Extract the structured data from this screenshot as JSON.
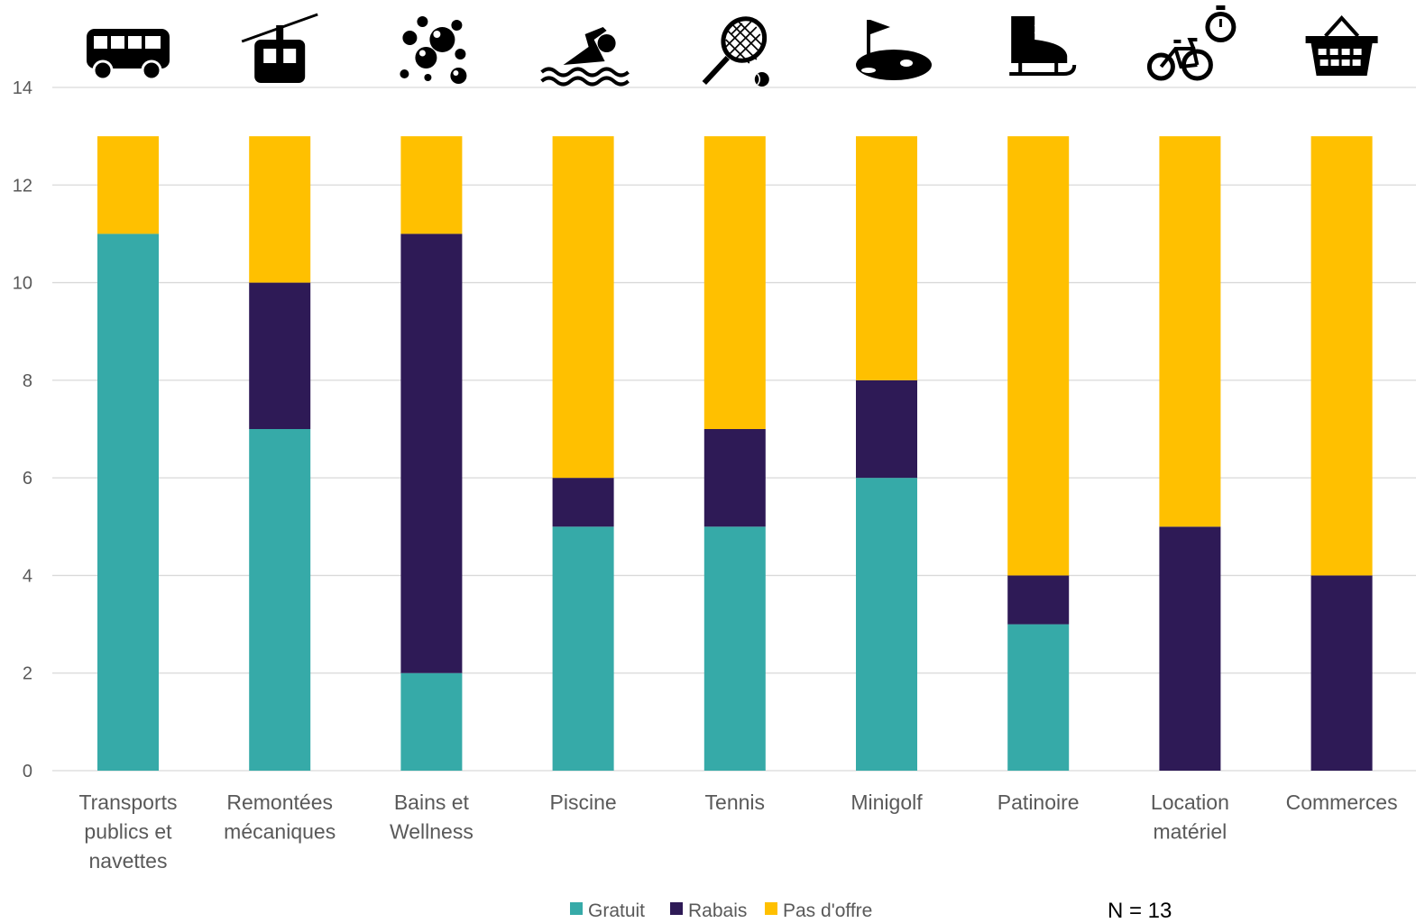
{
  "chart_data": {
    "type": "bar",
    "stacked": true,
    "categories": [
      "Transports publics et navettes",
      "Remontées mécaniques",
      "Bains et Wellness",
      "Piscine",
      "Tennis",
      "Minigolf",
      "Patinoire",
      "Location matériel",
      "Commerces"
    ],
    "category_lines": [
      [
        "Transports",
        "publics et",
        "navettes"
      ],
      [
        "Remontées",
        "mécaniques"
      ],
      [
        "Bains et",
        "Wellness"
      ],
      [
        "Piscine"
      ],
      [
        "Tennis"
      ],
      [
        "Minigolf"
      ],
      [
        "Patinoire"
      ],
      [
        "Location",
        "matériel"
      ],
      [
        "Commerces"
      ]
    ],
    "category_icons": [
      "bus-icon",
      "cable-car-icon",
      "bubbles-icon",
      "swimmer-icon",
      "tennis-icon",
      "minigolf-icon",
      "ice-skate-icon",
      "bicycle-stopwatch-icon",
      "shopping-basket-icon"
    ],
    "series": [
      {
        "name": "Gratuit",
        "color": "#36aaa8",
        "values": [
          11,
          7,
          2,
          5,
          5,
          6,
          3,
          0,
          0
        ]
      },
      {
        "name": "Rabais",
        "color": "#2e1a56",
        "values": [
          0,
          3,
          9,
          1,
          2,
          2,
          1,
          5,
          4
        ]
      },
      {
        "name": "Pas d'offre",
        "color": "#ffc000",
        "values": [
          2,
          3,
          2,
          7,
          6,
          5,
          9,
          8,
          9
        ]
      }
    ],
    "ylim": [
      0,
      14
    ],
    "yticks": [
      0,
      2,
      4,
      6,
      8,
      10,
      12,
      14
    ],
    "grid": true,
    "legend": "bottom",
    "title": "",
    "xlabel": "",
    "ylabel": "",
    "annotation": "N = 13"
  }
}
